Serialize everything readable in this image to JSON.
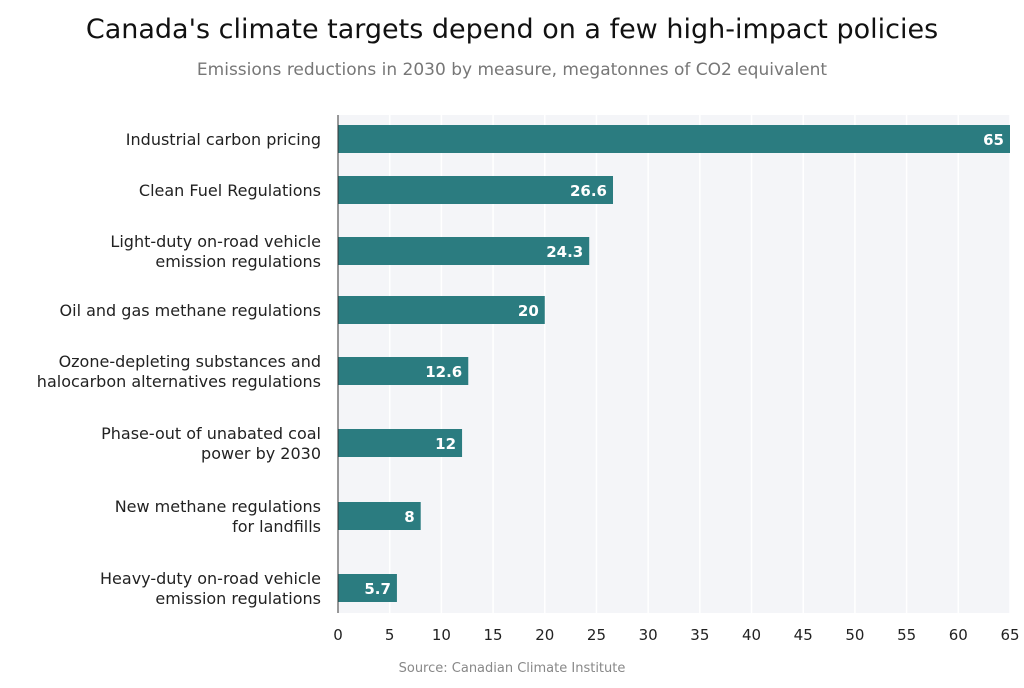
{
  "chart_data": {
    "type": "bar",
    "orientation": "horizontal",
    "title": "Canada's climate targets depend on a few high-impact policies",
    "subtitle": "Emissions reductions in 2030 by measure, megatonnes of CO2 equivalent",
    "source": "Source: Canadian Climate Institute",
    "categories": [
      [
        "Industrial carbon pricing"
      ],
      [
        "Clean Fuel Regulations"
      ],
      [
        "Light-duty on-road vehicle",
        "emission regulations"
      ],
      [
        "Oil and gas methane regulations"
      ],
      [
        "Ozone-depleting substances and",
        "halocarbon alternatives regulations"
      ],
      [
        "Phase-out of unabated coal",
        "power by 2030"
      ],
      [
        "New methane regulations",
        "for landfills"
      ],
      [
        "Heavy-duty on-road vehicle",
        "emission regulations"
      ]
    ],
    "values": [
      65,
      26.6,
      24.3,
      20,
      12.6,
      12,
      8,
      5.7
    ],
    "xlim": [
      0,
      65
    ],
    "xticks": [
      0,
      5,
      10,
      15,
      20,
      25,
      30,
      35,
      40,
      45,
      50,
      55,
      60,
      65
    ],
    "grid": true,
    "bar_color": "#2b7c80",
    "plot_background": "#f4f5f8"
  }
}
